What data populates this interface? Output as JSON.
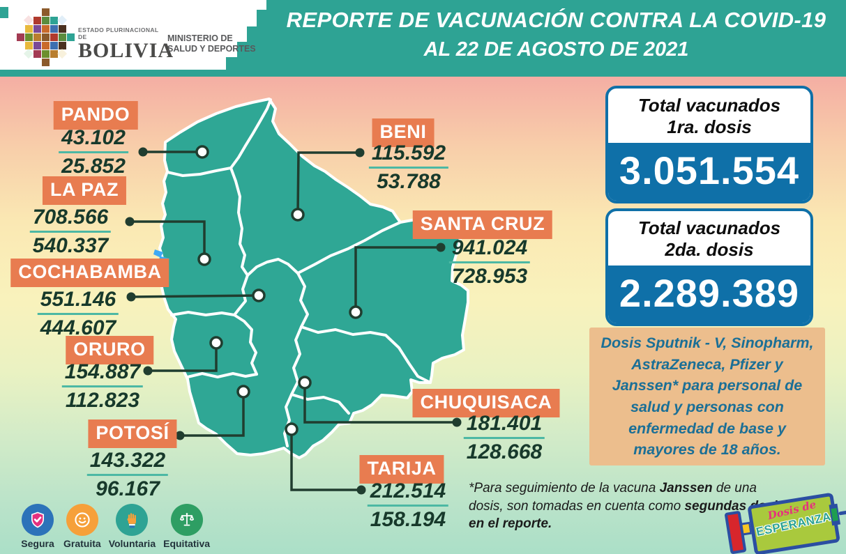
{
  "header": {
    "agency": {
      "small": "ESTADO PLURINACIONAL DE",
      "name": "BOLIVIA",
      "ministry1": "MINISTERIO DE",
      "ministry2": "SALUD Y DEPORTES"
    },
    "title_line1": "REPORTE DE VACUNACIÓN CONTRA LA COVID-19",
    "title_line2": "AL 22 DE AGOSTO DE 2021"
  },
  "departments": [
    {
      "id": "pando",
      "name": "PANDO",
      "dose1": "43.102",
      "dose2": "25.852"
    },
    {
      "id": "beni",
      "name": "BENI",
      "dose1": "115.592",
      "dose2": "53.788"
    },
    {
      "id": "la_paz",
      "name": "LA PAZ",
      "dose1": "708.566",
      "dose2": "540.337"
    },
    {
      "id": "santa_cruz",
      "name": "SANTA CRUZ",
      "dose1": "941.024",
      "dose2": "728.953"
    },
    {
      "id": "cochabamba",
      "name": "COCHABAMBA",
      "dose1": "551.146",
      "dose2": "444.607"
    },
    {
      "id": "oruro",
      "name": "ORURO",
      "dose1": "154.887",
      "dose2": "112.823"
    },
    {
      "id": "chuquisaca",
      "name": "CHUQUISACA",
      "dose1": "181.401",
      "dose2": "128.668"
    },
    {
      "id": "potosi",
      "name": "POTOSÍ",
      "dose1": "143.322",
      "dose2": "96.167"
    },
    {
      "id": "tarija",
      "name": "TARIJA",
      "dose1": "212.514",
      "dose2": "158.194"
    }
  ],
  "totals": [
    {
      "label_line1": "Total vacunados",
      "label_line2": "1ra. dosis",
      "value": "3.051.554"
    },
    {
      "label_line1": "Total vacunados",
      "label_line2": "2da. dosis",
      "value": "2.289.389"
    }
  ],
  "note": {
    "text": "Dosis Sputnik - V, Sinopharm, AstraZeneca, Pfizer y Janssen* para personal de salud y personas con enfermedad de base y mayores de 18 años."
  },
  "footnote": {
    "segments": [
      {
        "text": "*Para seguimiento de la vacuna ",
        "bold": false
      },
      {
        "text": "Janssen",
        "bold": true
      },
      {
        "text": " de una dosis, son tomadas en cuenta como ",
        "bold": false
      },
      {
        "text": "segundas dosis en el reporte.",
        "bold": true
      }
    ]
  },
  "values_icons": [
    {
      "icon": "shield-check-icon",
      "label": "Segura"
    },
    {
      "icon": "smiley-icon",
      "label": "Gratuita"
    },
    {
      "icon": "raised-hand-icon",
      "label": "Voluntaria"
    },
    {
      "icon": "balance-scale-icon",
      "label": "Equitativa"
    }
  ],
  "campaign_logo": {
    "line1": "Dosis de",
    "line2": "ESPERANZA"
  },
  "colors": {
    "teal": "#2EA394",
    "map_fill": "#2FA795",
    "label_orange": "#E87C50",
    "number_green": "#17392B",
    "total_blue": "#0F70A8",
    "note_bg": "#ECBE8D",
    "note_text": "#1B6F96",
    "underline_teal": "#4CB8A4",
    "lake_blue": "#3FA9F5",
    "icon_blue": "#2C73B9",
    "icon_orange": "#F6A03A",
    "icon_green": "#2E9E63",
    "shield_pink": "#E5317F"
  }
}
